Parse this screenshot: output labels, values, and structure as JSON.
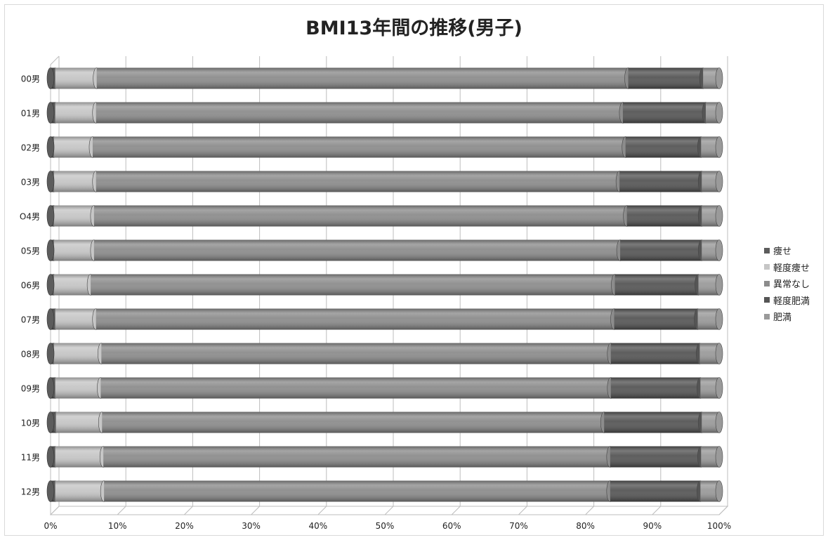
{
  "chart_data": {
    "type": "bar",
    "orientation": "horizontal",
    "stacked": "percent",
    "title": "BMI13年間の推移(男子)",
    "categories": [
      "00男",
      "01男",
      "02男",
      "03男",
      "O4男",
      "05男",
      "06男",
      "07男",
      "08男",
      "09男",
      "10男",
      "11男",
      "12男"
    ],
    "x_ticks": [
      "0%",
      "10%",
      "20%",
      "30%",
      "40%",
      "50%",
      "60%",
      "70%",
      "80%",
      "90%",
      "100%"
    ],
    "xlim": [
      0,
      100
    ],
    "grid": true,
    "legend_position": "right",
    "series": [
      {
        "name": "痩せ",
        "color": "#5c5c5c",
        "values": [
          0.7,
          0.7,
          0.5,
          0.5,
          0.5,
          0.5,
          0.5,
          0.7,
          0.5,
          0.7,
          0.8,
          0.7,
          0.7
        ]
      },
      {
        "name": "軽度痩せ",
        "color": "#c6c6c6",
        "values": [
          6.2,
          6.1,
          5.8,
          6.3,
          6.0,
          6.0,
          5.5,
          6.1,
          7.1,
          6.8,
          6.9,
          7.2,
          7.3
        ]
      },
      {
        "name": "異常なし",
        "color": "#8c8c8c",
        "values": [
          79.5,
          78.8,
          79.7,
          78.3,
          79.7,
          78.7,
          78.4,
          77.5,
          76.2,
          76.3,
          75.1,
          75.8,
          75.7
        ]
      },
      {
        "name": "軽度肥満",
        "color": "#555555",
        "values": [
          11.2,
          12.4,
          11.3,
          12.3,
          11.2,
          12.2,
          12.5,
          12.5,
          13.3,
          13.4,
          14.6,
          13.6,
          13.5
        ]
      },
      {
        "name": "肥満",
        "color": "#9a9a9a",
        "values": [
          2.4,
          2.0,
          2.7,
          2.6,
          2.6,
          2.6,
          3.1,
          3.2,
          2.9,
          2.8,
          2.6,
          2.7,
          2.8
        ]
      }
    ]
  }
}
